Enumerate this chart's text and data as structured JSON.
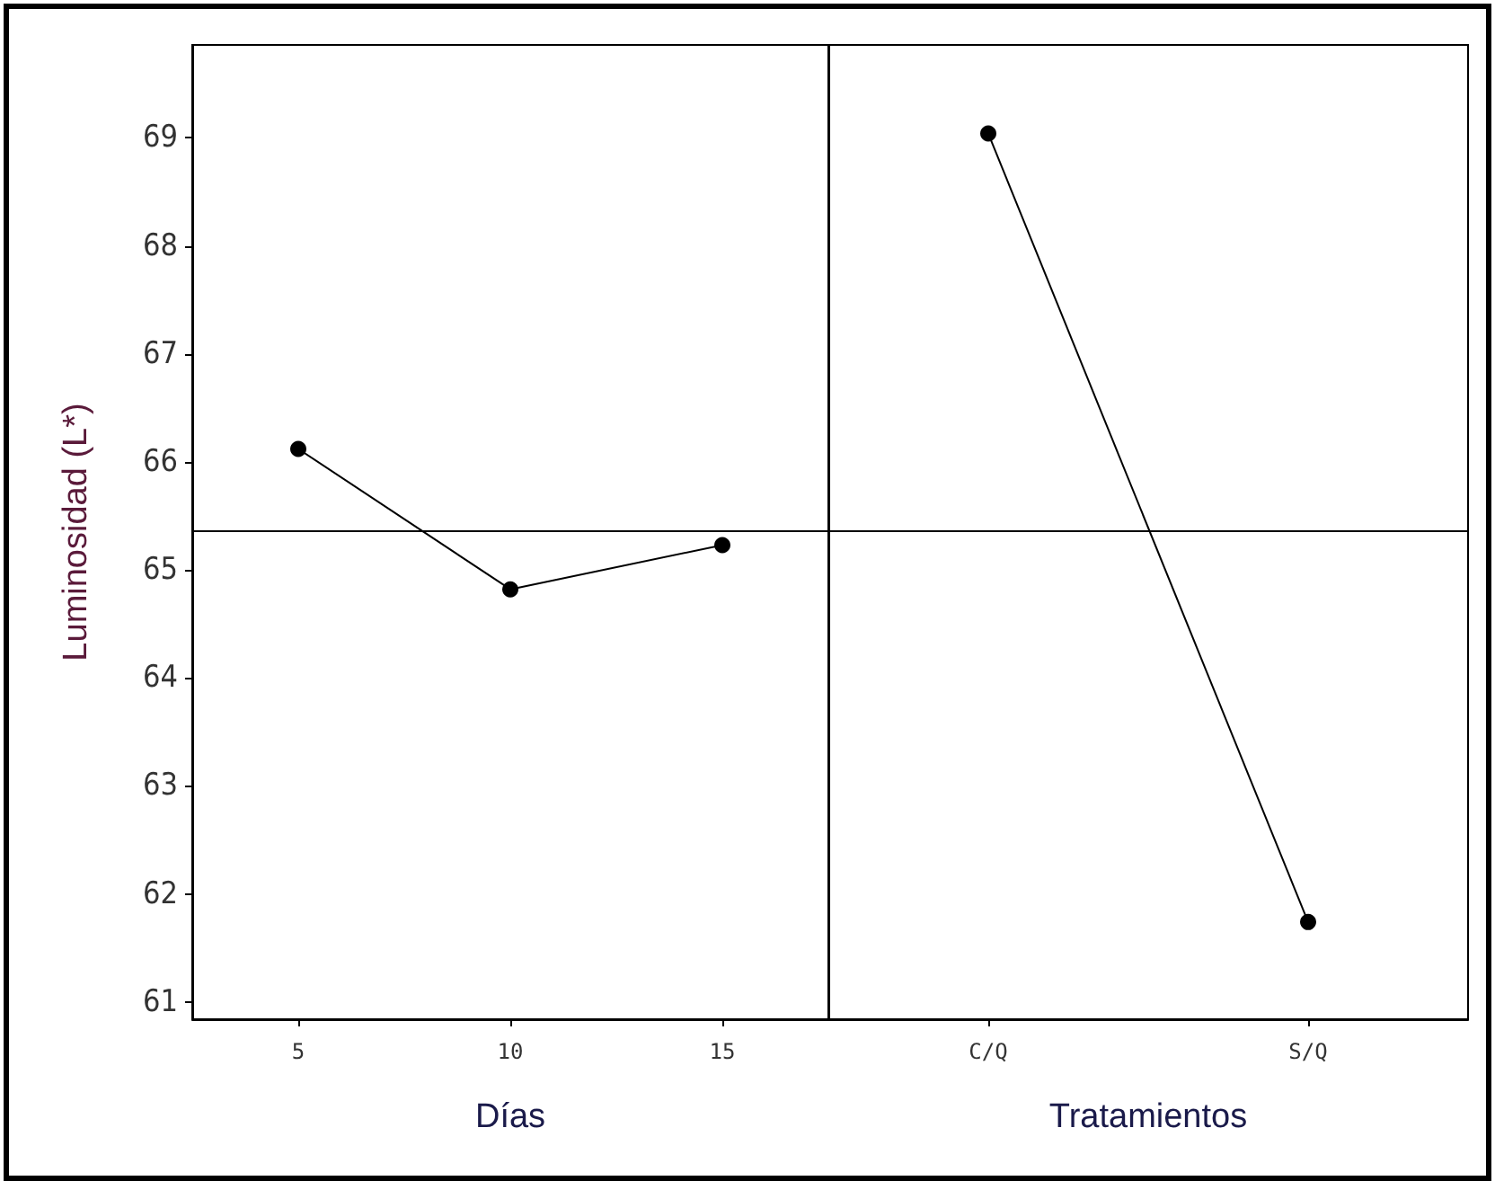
{
  "chart_data": [
    {
      "type": "line",
      "ylabel": "Luminosidad (L*)",
      "xlabel": "Días",
      "categories": [
        "5",
        "10",
        "15"
      ],
      "series": [
        {
          "color": "#000000",
          "values": [
            66.12,
            64.82,
            65.23
          ]
        }
      ],
      "ylim": [
        60.84,
        69.86
      ],
      "yticks": [
        61,
        62,
        63,
        64,
        65,
        66,
        67,
        68,
        69
      ],
      "marker": "circle",
      "grid": false,
      "ref_lines": [
        {
          "axis": "y",
          "value": 65.37,
          "color": "#000000"
        }
      ]
    },
    {
      "type": "line",
      "xlabel": "Tratamientos",
      "categories": [
        "C/Q",
        "S/Q"
      ],
      "series": [
        {
          "color": "#000000",
          "values": [
            69.04,
            61.74
          ]
        }
      ],
      "ylim": [
        60.84,
        69.86
      ],
      "yticks": [
        61,
        62,
        63,
        64,
        65,
        66,
        67,
        68,
        69
      ],
      "tick_labels": "x",
      "marker": "circle",
      "grid": false,
      "ref_lines": [
        {
          "axis": "y",
          "value": 65.37,
          "color": "#000000"
        }
      ]
    }
  ]
}
